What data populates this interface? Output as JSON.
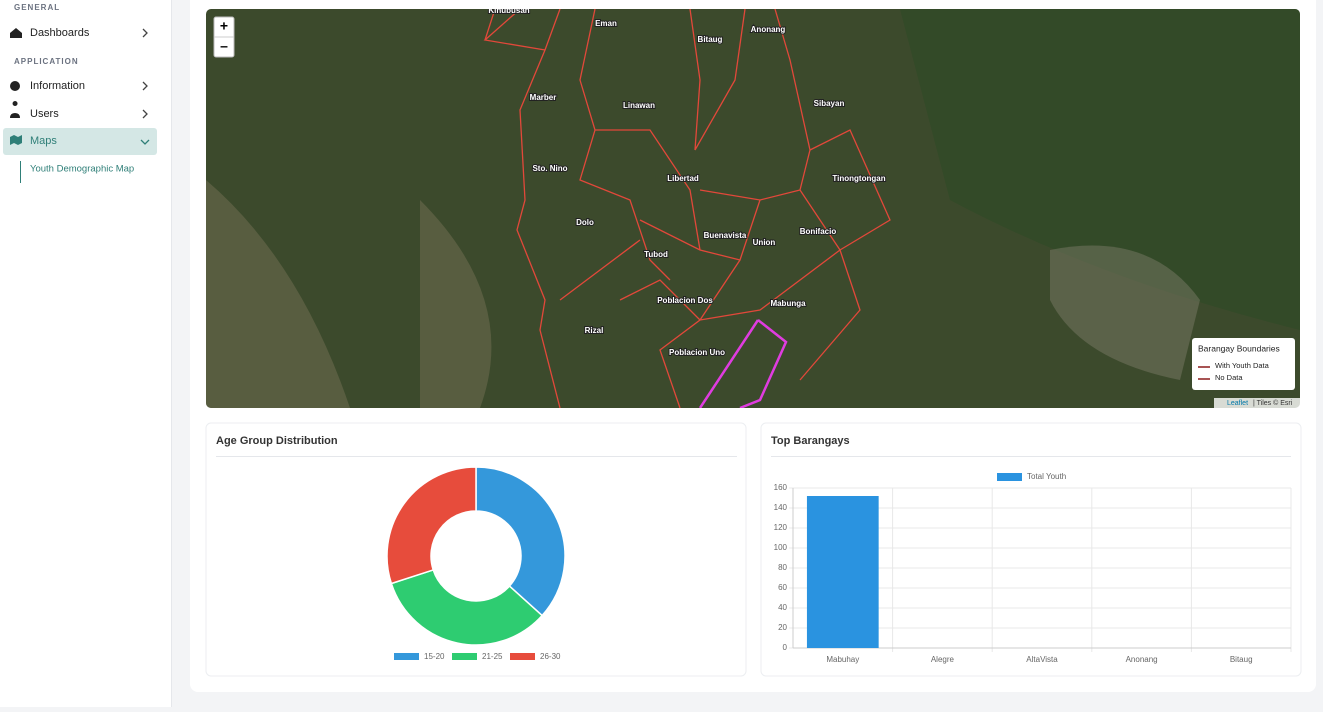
{
  "sidebar": {
    "sections": [
      {
        "heading": "GENERAL",
        "items": [
          "Dashboards"
        ]
      },
      {
        "heading": "APPLICATION",
        "items": [
          "Information",
          "Users",
          "Maps"
        ]
      }
    ],
    "subitem": "Youth Demographic Map"
  },
  "map": {
    "zoom_in": "+",
    "zoom_out": "–",
    "labels": [
      "Kinubusan",
      "Eman",
      "Bitaug",
      "Anonang",
      "Marber",
      "Linawan",
      "Sibayan",
      "Sto. Nino",
      "Libertad",
      "Tinongtongan",
      "Dolo",
      "Buenavista",
      "Union",
      "Bonifacio",
      "Tubod",
      "Poblacion Dos",
      "Mabunga",
      "Rizal",
      "Poblacion Uno"
    ],
    "legend": {
      "title": "Barangay Boundaries",
      "items": [
        "With Youth Data",
        "No Data"
      ]
    },
    "attribution": {
      "link": "Leaflet",
      "tiles": "| Tiles © Esri"
    }
  },
  "chart_data": [
    {
      "type": "doughnut",
      "title": "Age Group Distribution",
      "categories": [
        "15-20",
        "21-25",
        "26-30"
      ],
      "values": [
        55,
        50,
        45
      ],
      "colors": [
        "#3498db",
        "#2ecc71",
        "#e74c3c"
      ]
    },
    {
      "type": "bar",
      "title": "Top Barangays",
      "categories": [
        "Mabuhay",
        "Alegre",
        "AltaVista",
        "Anonang",
        "Bitaug"
      ],
      "series": [
        {
          "name": "Total Youth",
          "color": "#2a93e0",
          "values": [
            152,
            0,
            0,
            0,
            0
          ]
        }
      ],
      "ylim": [
        0,
        160
      ],
      "yticks": [
        0,
        20,
        40,
        60,
        80,
        100,
        120,
        140,
        160
      ],
      "grid": true
    }
  ]
}
